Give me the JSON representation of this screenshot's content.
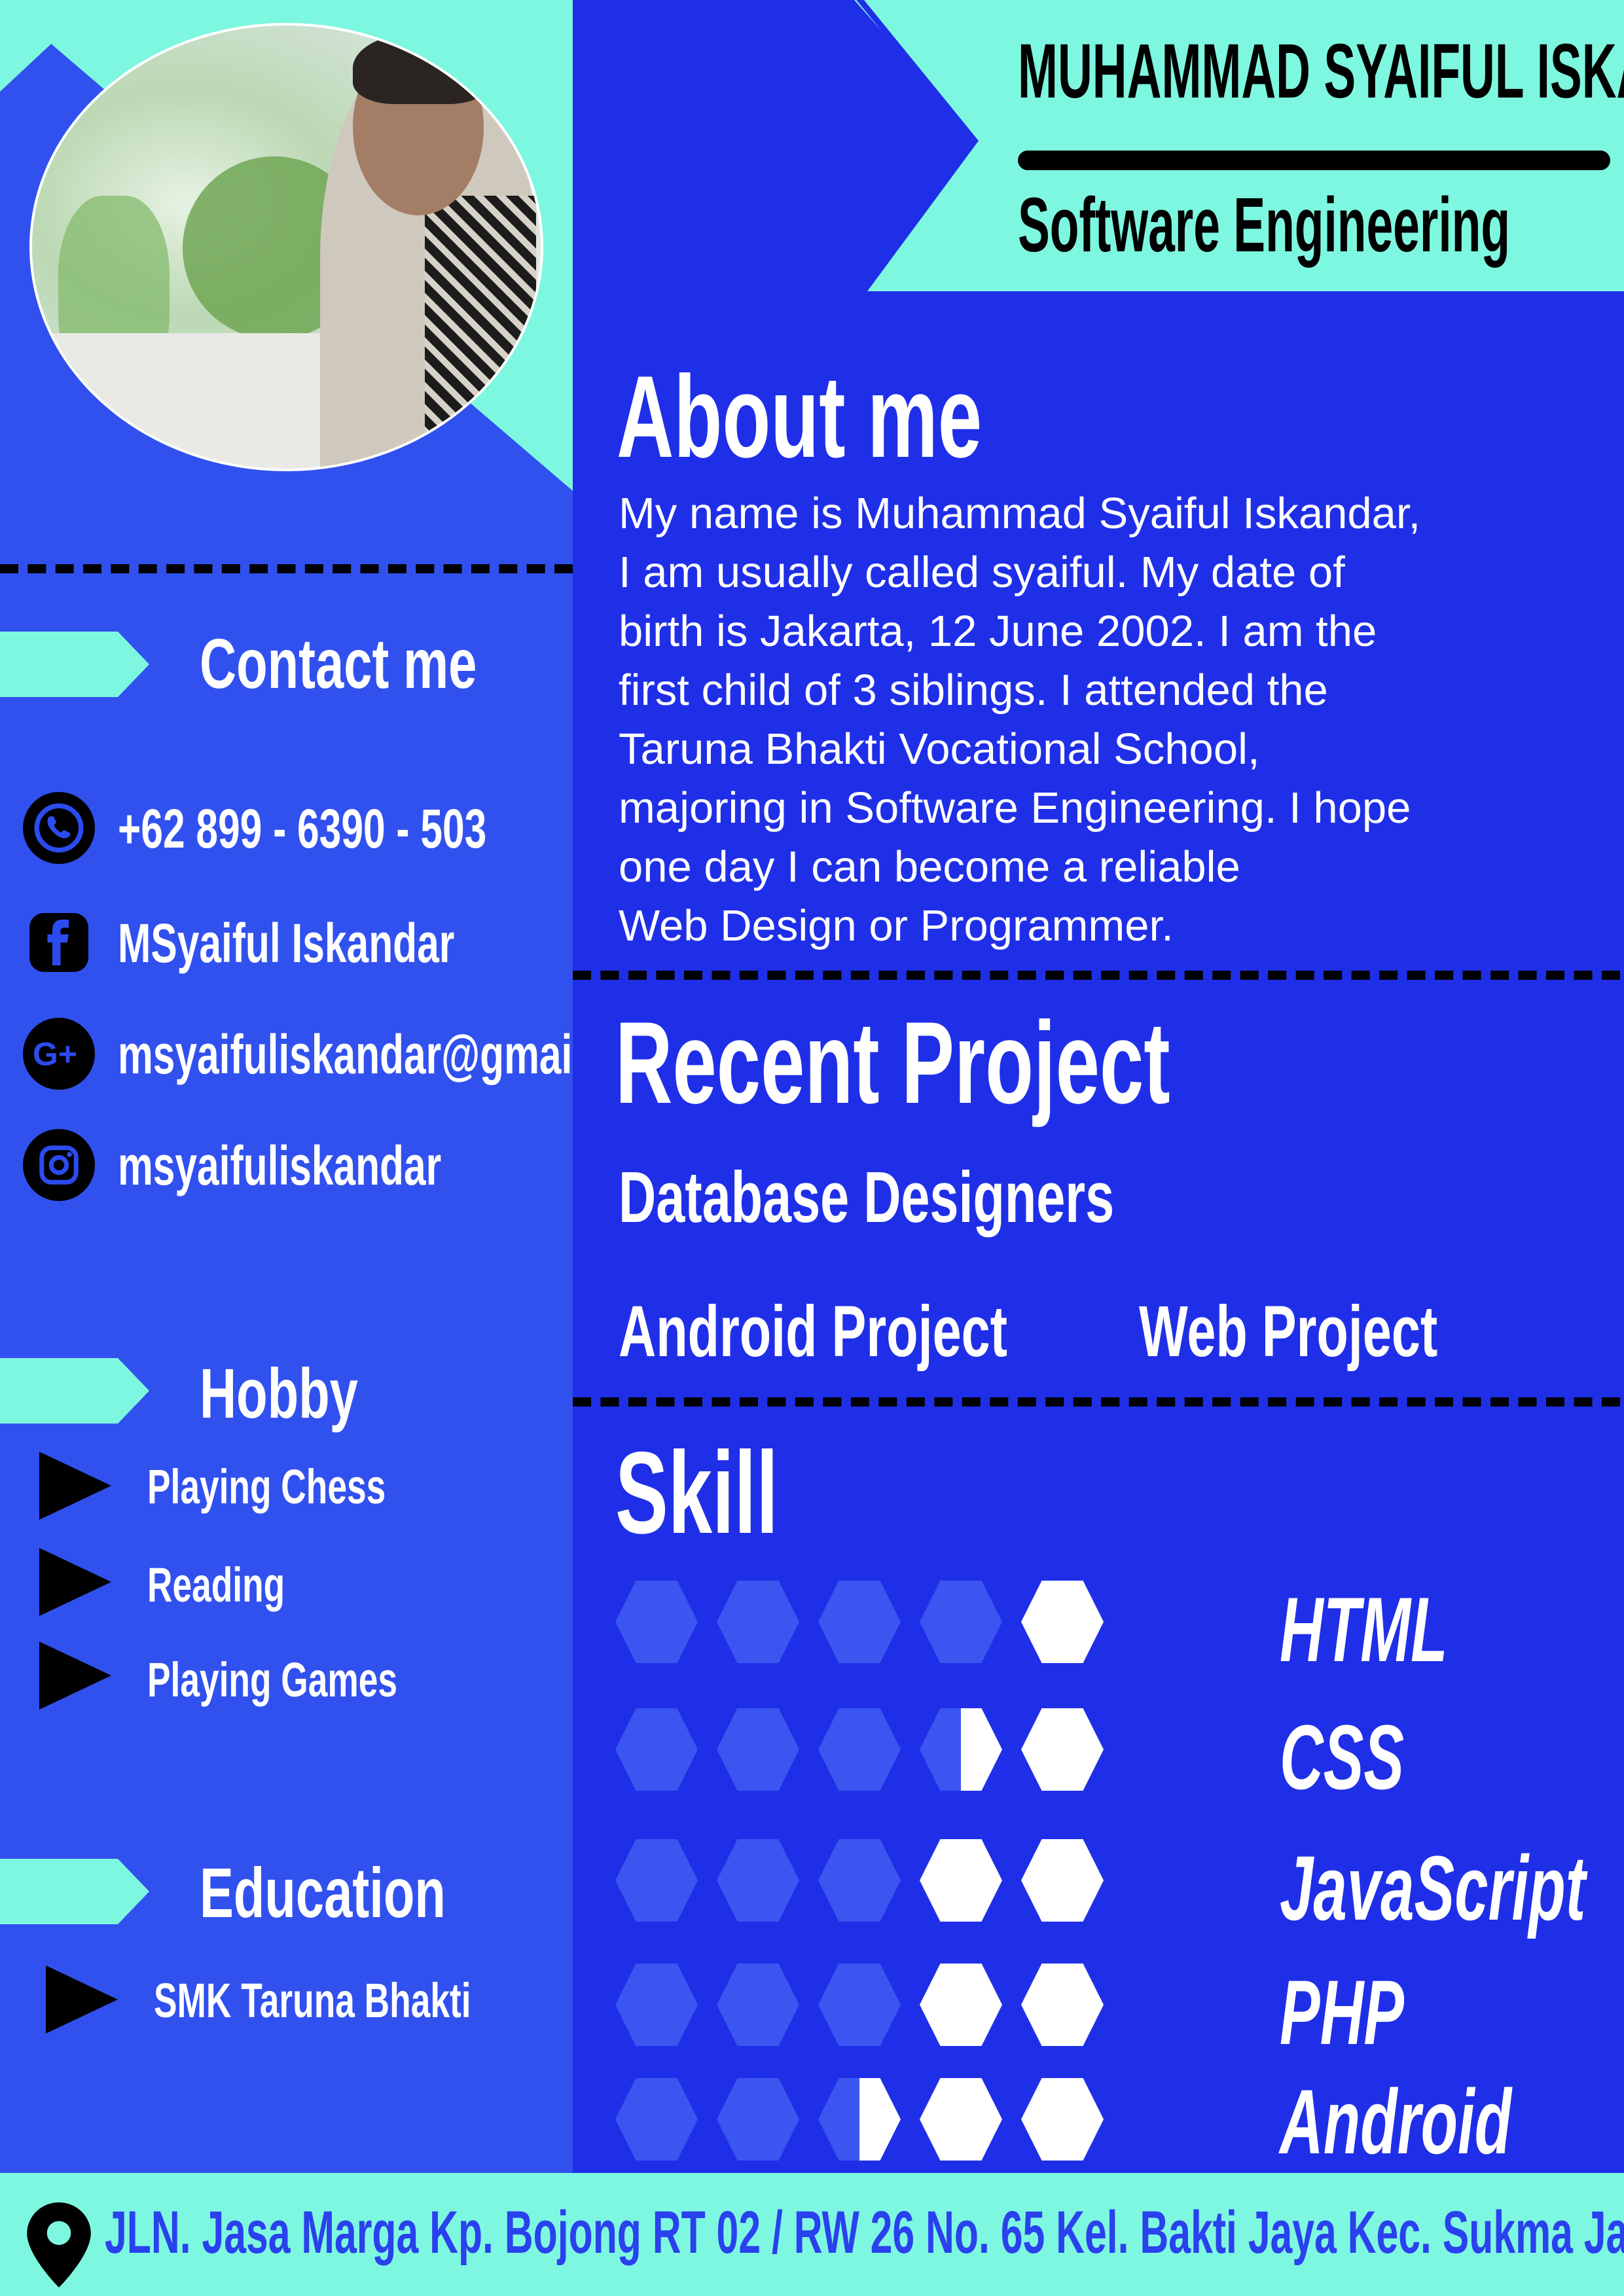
{
  "header": {
    "name": "MUHAMMAD SYAIFUL ISKANDAR",
    "role": "Software Engineering"
  },
  "contact": {
    "title": "Contact me",
    "items": [
      {
        "icon": "whatsapp-icon",
        "text": "+62 899 - 6390 - 503"
      },
      {
        "icon": "facebook-icon",
        "text": "MSyaiful Iskandar"
      },
      {
        "icon": "google-plus-icon",
        "text": "msyaifuliskandar@gmail.com"
      },
      {
        "icon": "instagram-icon",
        "text": "msyaifuliskandar"
      }
    ]
  },
  "hobby": {
    "title": "Hobby",
    "items": [
      "Playing Chess",
      "Reading",
      "Playing Games"
    ]
  },
  "education": {
    "title": "Education",
    "items": [
      "SMK Taruna Bhakti"
    ]
  },
  "about": {
    "title": "About me",
    "lines": [
      "My name is Muhammad Syaiful Iskandar,",
      "I am usually called syaiful. My date of",
      "birth is Jakarta, 12 June 2002. I am the",
      "first child of 3 siblings. I attended the",
      "Taruna Bhakti Vocational School,",
      "majoring in Software Engineering. I hope",
      "one day I can become a reliable",
      "Web Design or Programmer."
    ]
  },
  "projects": {
    "title": "Recent Project",
    "items": [
      "Database Designers",
      "Android Project",
      "Web Project"
    ]
  },
  "skills": {
    "title": "Skill",
    "max_level": 5,
    "items": [
      {
        "name": "HTML",
        "level": 1
      },
      {
        "name": "CSS",
        "level": 1.5
      },
      {
        "name": "JavaScript",
        "level": 2
      },
      {
        "name": "PHP",
        "level": 2
      },
      {
        "name": "Android",
        "level": 2.5
      }
    ]
  },
  "footer": {
    "address": "JLN. Jasa Marga Kp. Bojong RT 02 / RW 26 No. 65    Kel. Bakti Jaya Kec. Sukma Jaya Depok"
  },
  "colors": {
    "left_bg": "#3151ef",
    "right_bg": "#1f2fe8",
    "accent": "#7ef7e0",
    "hex_dim": "#3a55f0",
    "hex_full": "#ffffff"
  }
}
